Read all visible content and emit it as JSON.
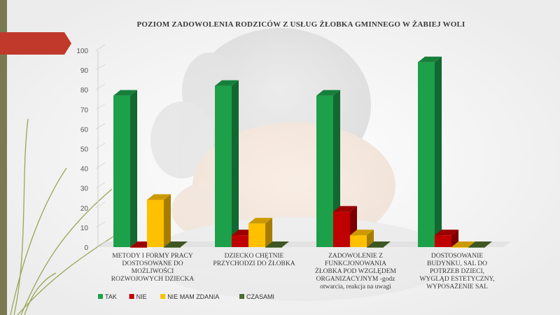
{
  "colors": {
    "tak": "#1ca04a",
    "nie": "#c00000",
    "nie_mam_zdania": "#ffc000",
    "czasami": "#4e6b2c",
    "accent_tab": "#c0392b",
    "stripe": "#7a7a52"
  },
  "chart_data": {
    "type": "bar",
    "title": "POZIOM ZADOWOLENIA RODZICÓW Z USŁUG ŻŁOBKA GMINNEGO W ŻABIEJ WOLI",
    "categories": [
      [
        "METODY I FORMY PRACY",
        "DOSTOSOWANE DO",
        "MOŻLIWOŚCI",
        "ROZWOJOWYCH DZIECKA"
      ],
      [
        "DZIECKO CHĘTNIE",
        "PRZYCHODZI DO ŻŁOBKA"
      ],
      [
        "ZADOWOLENIE Z",
        "FUNKCJONOWANIA",
        "ŻŁOBKA POD WZGLĘDEM",
        "ORGANIZACYJNYM -godz",
        "otwarcia, reakcja na uwagi"
      ],
      [
        "DOSTOSOWANIE",
        "BUDYNKU, SAL DO",
        "POTRZEB DZIECI,",
        "WYGLĄD ESTETYCZNY,",
        "WYPOSAŻENIE SAL"
      ]
    ],
    "series": [
      {
        "name": "TAK",
        "values": [
          77,
          82,
          77,
          94
        ]
      },
      {
        "name": "NIE",
        "values": [
          0,
          6,
          18,
          6
        ]
      },
      {
        "name": "NIE MAM ZDANIA",
        "values": [
          24,
          12,
          6,
          0
        ]
      },
      {
        "name": "CZASAMI",
        "values": [
          0,
          0,
          0,
          0
        ]
      }
    ],
    "ylim": [
      0,
      100
    ],
    "yticks": [
      "0",
      "10",
      "20",
      "30",
      "40",
      "50",
      "60",
      "70",
      "80",
      "90",
      "100"
    ],
    "grid": false,
    "legend_position": "bottom-left"
  }
}
